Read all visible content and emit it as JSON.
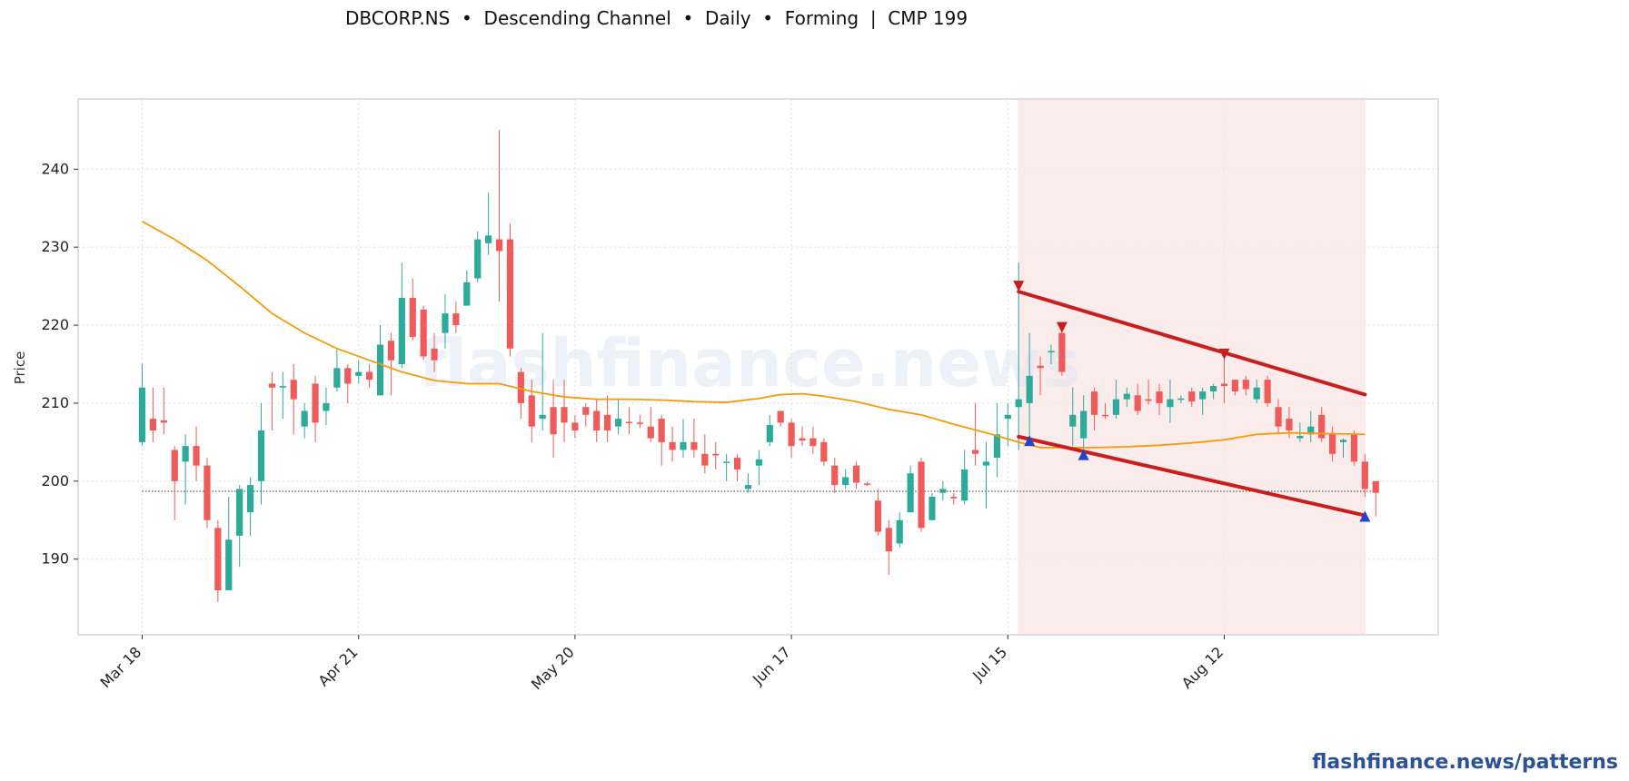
{
  "title": "DBCORP.NS  •  Descending Channel  •  Daily  •  Forming  |  CMP 199",
  "watermark": "flashfinance.news",
  "footer": "flashfinance.news/patterns",
  "colors": {
    "up": "#2eaa9b",
    "down": "#ef5a5a",
    "ma": "#f59a0a",
    "channel": "#c81e1e",
    "marker_low": "#2244cc",
    "marker_high": "#c81e1e",
    "shade": "#f9e6e6",
    "grid": "#e0e0e0"
  },
  "chart_data": {
    "type": "candlestick",
    "ylabel": "Price",
    "ylim": [
      180.3,
      249.0
    ],
    "yticks": [
      190,
      200,
      210,
      220,
      230,
      240
    ],
    "xticks": [
      {
        "label": "Mar 18",
        "index": 0
      },
      {
        "label": "Apr 21",
        "index": 20
      },
      {
        "label": "May 20",
        "index": 40
      },
      {
        "label": "Jun 17",
        "index": 60
      },
      {
        "label": "Jul 15",
        "index": 80
      },
      {
        "label": "Aug 12",
        "index": 100
      }
    ],
    "grid": true,
    "candles": [
      [
        205,
        212,
        215,
        204.5
      ],
      [
        208,
        206.5,
        212,
        205
      ],
      [
        207.8,
        207.5,
        212,
        206
      ],
      [
        204,
        200,
        204.5,
        195
      ],
      [
        202.5,
        204.5,
        206,
        197
      ],
      [
        204.5,
        202,
        207,
        200
      ],
      [
        202,
        195,
        203,
        194
      ],
      [
        194,
        186,
        195,
        184.5
      ],
      [
        186,
        192.5,
        198,
        186
      ],
      [
        193,
        199,
        199.5,
        189
      ],
      [
        196,
        199.5,
        200.5,
        193
      ],
      [
        200,
        206.5,
        210,
        197
      ],
      [
        212.5,
        212,
        214,
        206.5
      ],
      [
        212,
        212.2,
        214,
        208
      ],
      [
        213,
        210.5,
        215,
        206
      ],
      [
        207,
        209,
        210,
        205.5
      ],
      [
        212.5,
        207.5,
        213.5,
        205
      ],
      [
        209,
        210,
        212,
        207.2
      ],
      [
        212,
        214.5,
        217,
        211.5
      ],
      [
        214.5,
        212.5,
        215,
        210
      ],
      [
        213.5,
        214,
        215.5,
        212.5
      ],
      [
        214,
        213,
        215,
        212
      ],
      [
        211,
        217.5,
        220,
        211
      ],
      [
        218,
        215.5,
        219,
        211
      ],
      [
        215,
        223.5,
        228,
        214.5
      ],
      [
        223.5,
        218.5,
        226,
        218
      ],
      [
        222,
        216,
        222.5,
        215.5
      ],
      [
        217,
        215.5,
        219,
        214
      ],
      [
        219,
        221.5,
        224,
        217
      ],
      [
        221.5,
        220,
        223,
        219
      ],
      [
        222.5,
        225.5,
        227,
        222.5
      ],
      [
        226,
        231,
        232,
        225.5
      ],
      [
        230.5,
        231.5,
        237,
        229
      ],
      [
        231,
        229.5,
        245,
        223
      ],
      [
        231,
        217,
        233,
        216
      ],
      [
        214,
        210,
        214.5,
        208
      ],
      [
        211,
        207,
        213,
        205
      ],
      [
        208,
        208.5,
        219,
        206.5
      ],
      [
        209.5,
        206,
        213,
        203
      ],
      [
        209.5,
        207.5,
        213,
        205
      ],
      [
        207.5,
        206.5,
        208.5,
        205.5
      ],
      [
        209.5,
        208.5,
        210,
        207
      ],
      [
        209,
        206.5,
        210.5,
        205
      ],
      [
        208.5,
        206.5,
        211,
        205
      ],
      [
        207,
        208,
        210.5,
        206
      ],
      [
        207.6,
        207.5,
        209.5,
        206
      ],
      [
        207.5,
        207.4,
        208.5,
        206.8
      ],
      [
        207,
        205.5,
        209.5,
        205
      ],
      [
        208,
        205,
        208.5,
        202
      ],
      [
        205,
        204,
        207,
        202.5
      ],
      [
        204,
        205,
        208,
        203
      ],
      [
        205,
        204,
        208,
        203
      ],
      [
        203.5,
        202,
        206,
        201
      ],
      [
        203.5,
        203.3,
        205,
        201.5
      ],
      [
        202.5,
        202.5,
        203.5,
        200
      ],
      [
        203,
        201.5,
        203.5,
        200
      ],
      [
        199,
        199.5,
        201,
        198.5
      ],
      [
        202,
        202.8,
        204,
        199.5
      ],
      [
        205,
        207.2,
        208.5,
        204.5
      ],
      [
        209,
        207.5,
        209,
        207
      ],
      [
        207.5,
        204.5,
        208,
        203
      ],
      [
        205.5,
        205.2,
        207,
        204.5
      ],
      [
        205.5,
        204.5,
        207,
        203.5
      ],
      [
        205,
        202.5,
        205.5,
        202
      ],
      [
        202,
        199.5,
        203,
        198.5
      ],
      [
        199.5,
        200.5,
        201.5,
        199
      ],
      [
        202,
        199.8,
        202.5,
        199
      ],
      [
        199.7,
        199.6,
        199.9,
        199.4
      ],
      [
        197.5,
        193.5,
        199,
        193
      ],
      [
        194,
        191,
        195,
        188
      ],
      [
        192,
        195,
        196,
        191.5
      ],
      [
        196,
        201,
        202,
        196
      ],
      [
        202.5,
        194,
        203,
        193.5
      ],
      [
        195,
        198,
        198.5,
        195
      ],
      [
        198.5,
        199,
        200,
        197.5
      ],
      [
        198,
        197.8,
        198.5,
        197
      ],
      [
        197.5,
        201.5,
        204,
        197
      ],
      [
        204,
        203.5,
        210,
        202
      ],
      [
        202,
        202.5,
        205,
        196.5
      ],
      [
        203,
        206,
        210,
        200.5
      ],
      [
        208,
        208.5,
        210,
        204.5
      ],
      [
        209.5,
        210.5,
        228,
        204
      ],
      [
        210,
        213.5,
        219,
        205
      ],
      [
        214.8,
        214.5,
        216,
        211
      ],
      [
        216.5,
        216.7,
        217.5,
        215
      ],
      [
        219,
        214,
        220,
        213.5
      ],
      [
        207,
        208.5,
        212,
        204.5
      ],
      [
        205.5,
        209,
        211,
        204
      ],
      [
        211.5,
        208.5,
        212,
        206.5
      ],
      [
        208.5,
        208.4,
        210,
        208
      ],
      [
        208.5,
        210.5,
        213,
        208
      ],
      [
        210.5,
        211.2,
        212,
        209.5
      ],
      [
        211,
        209,
        212.5,
        208.5
      ],
      [
        210.5,
        210.3,
        213,
        209.8
      ],
      [
        211.5,
        210,
        212.5,
        208.5
      ],
      [
        209.5,
        210.5,
        213,
        207.5
      ],
      [
        210.5,
        210.6,
        211,
        210
      ],
      [
        211.5,
        210.2,
        212,
        209.5
      ],
      [
        210.5,
        211.5,
        212,
        208.5
      ],
      [
        211.5,
        212.2,
        212.5,
        210.5
      ],
      [
        212.5,
        212.2,
        216.5,
        210
      ],
      [
        213,
        211.5,
        213,
        211
      ],
      [
        213,
        211.8,
        213.5,
        211
      ],
      [
        210.5,
        212,
        213,
        210
      ],
      [
        213,
        210,
        213.5,
        209.5
      ],
      [
        209.5,
        207,
        210.5,
        206
      ],
      [
        208,
        206.5,
        209.5,
        205.5
      ],
      [
        205.5,
        205.8,
        207.5,
        205
      ],
      [
        206,
        207,
        209,
        205
      ],
      [
        208.5,
        205.5,
        209.5,
        205
      ],
      [
        206,
        203.5,
        207,
        202.5
      ],
      [
        205,
        205.3,
        205.5,
        203
      ],
      [
        206,
        202.5,
        206.5,
        202
      ],
      [
        202.5,
        199,
        203.5,
        198
      ],
      [
        200,
        198.5,
        200,
        195.5
      ]
    ],
    "ma_series": [
      {
        "index": 0,
        "value": 233.3
      },
      {
        "index": 3,
        "value": 231
      },
      {
        "index": 6,
        "value": 228.3
      },
      {
        "index": 9,
        "value": 225
      },
      {
        "index": 12,
        "value": 221.5
      },
      {
        "index": 15,
        "value": 219
      },
      {
        "index": 18,
        "value": 217
      },
      {
        "index": 21,
        "value": 215.5
      },
      {
        "index": 24,
        "value": 214
      },
      {
        "index": 27,
        "value": 212.9
      },
      {
        "index": 30,
        "value": 212.5
      },
      {
        "index": 33,
        "value": 212.5
      },
      {
        "index": 36,
        "value": 211.5
      },
      {
        "index": 39,
        "value": 210.8
      },
      {
        "index": 42,
        "value": 210.5
      },
      {
        "index": 45,
        "value": 210.5
      },
      {
        "index": 48,
        "value": 210.4
      },
      {
        "index": 51,
        "value": 210.2
      },
      {
        "index": 54,
        "value": 210.1
      },
      {
        "index": 57,
        "value": 210.6
      },
      {
        "index": 59,
        "value": 211.1
      },
      {
        "index": 61,
        "value": 211.2
      },
      {
        "index": 63,
        "value": 210.9
      },
      {
        "index": 66,
        "value": 210.2
      },
      {
        "index": 69,
        "value": 209.2
      },
      {
        "index": 72,
        "value": 208.5
      },
      {
        "index": 75,
        "value": 207.3
      },
      {
        "index": 78,
        "value": 206.2
      },
      {
        "index": 81,
        "value": 205
      },
      {
        "index": 83,
        "value": 204.3
      },
      {
        "index": 85,
        "value": 204.3
      },
      {
        "index": 88,
        "value": 204.3
      },
      {
        "index": 91,
        "value": 204.4
      },
      {
        "index": 94,
        "value": 204.6
      },
      {
        "index": 97,
        "value": 204.9
      },
      {
        "index": 100,
        "value": 205.3
      },
      {
        "index": 103,
        "value": 206
      },
      {
        "index": 106,
        "value": 206.2
      },
      {
        "index": 109,
        "value": 206.1
      },
      {
        "index": 113,
        "value": 206
      }
    ],
    "cmp_line": 198.7,
    "shaded_region": {
      "start_index": 81,
      "end_index": 113
    },
    "channel": {
      "upper": {
        "start": {
          "index": 81,
          "value": 224.3
        },
        "end": {
          "index": 113,
          "value": 211.1
        }
      },
      "lower": {
        "start": {
          "index": 81,
          "value": 205.7
        },
        "end": {
          "index": 113,
          "value": 195.6
        }
      }
    },
    "markers": [
      {
        "type": "high",
        "index": 81,
        "value": 225
      },
      {
        "type": "high",
        "index": 85,
        "value": 219.7
      },
      {
        "type": "high",
        "index": 100,
        "value": 216.3
      },
      {
        "type": "low",
        "index": 82,
        "value": 205.2
      },
      {
        "type": "low",
        "index": 87,
        "value": 203.4
      },
      {
        "type": "low",
        "index": 113,
        "value": 195.5
      }
    ]
  }
}
